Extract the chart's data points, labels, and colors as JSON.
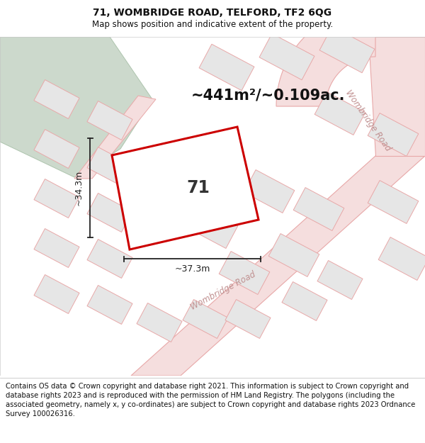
{
  "title": "71, WOMBRIDGE ROAD, TELFORD, TF2 6QG",
  "subtitle": "Map shows position and indicative extent of the property.",
  "footer": "Contains OS data © Crown copyright and database right 2021. This information is subject to Crown copyright and database rights 2023 and is reproduced with the permission of HM Land Registry. The polygons (including the associated geometry, namely x, y co-ordinates) are subject to Crown copyright and database rights 2023 Ordnance Survey 100026316.",
  "area_label": "~441m²/~0.109ac.",
  "width_label": "~37.3m",
  "height_label": "~34.3m",
  "plot_number": "71",
  "road_label_diag": "Wombridge Road",
  "road_label_right": "Wombridge Road",
  "bg_white": "#ffffff",
  "map_bg": "#f2f2f2",
  "green_color": "#ccd9cc",
  "road_fill": "#f5dede",
  "road_edge": "#e8a8a8",
  "block_fill": "#e6e6e6",
  "block_edge": "#e8a8a8",
  "plot_edge": "#cc0000",
  "dim_color": "#222222",
  "title_fontsize": 10,
  "subtitle_fontsize": 8.5,
  "footer_fontsize": 7.2,
  "area_fontsize": 15,
  "dim_fontsize": 9,
  "plot_num_fontsize": 17,
  "road_fontsize": 8.5
}
